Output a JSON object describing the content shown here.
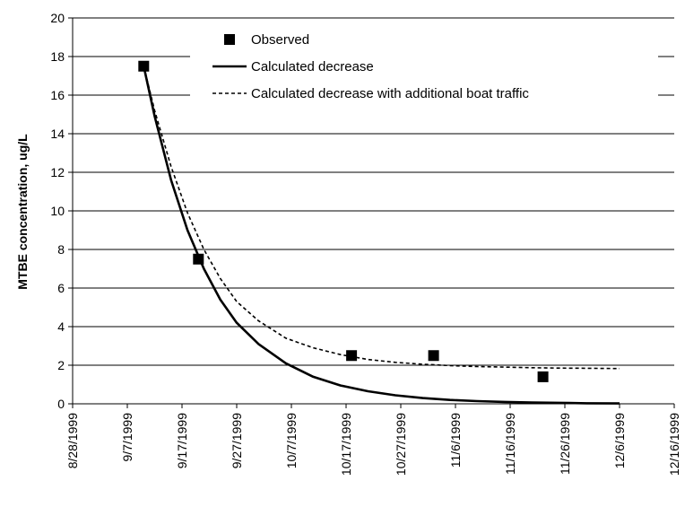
{
  "chart_data": {
    "type": "scatter",
    "title": "",
    "xlabel": "",
    "ylabel": "MTBE concentration, ug/L",
    "x_ticks": [
      "8/28/1999",
      "9/7/1999",
      "9/17/1999",
      "9/27/1999",
      "10/7/1999",
      "10/17/1999",
      "10/27/1999",
      "11/6/1999",
      "11/16/1999",
      "11/26/1999",
      "12/6/1999",
      "12/16/1999"
    ],
    "xlim": [
      "1999-08-28",
      "1999-12-16"
    ],
    "ylim": [
      0,
      20
    ],
    "y_ticks": [
      "0",
      "2",
      "4",
      "6",
      "8",
      "10",
      "12",
      "14",
      "16",
      "18",
      "20"
    ],
    "grid": "horizontal",
    "legend": "top-right",
    "series": [
      {
        "name": "Observed",
        "kind": "markers",
        "marker": "square",
        "color": "#000000",
        "points": [
          {
            "x": "1999-09-10",
            "y": 17.5
          },
          {
            "x": "1999-09-20",
            "y": 7.5
          },
          {
            "x": "1999-10-18",
            "y": 2.5
          },
          {
            "x": "1999-11-02",
            "y": 2.5
          },
          {
            "x": "1999-11-22",
            "y": 1.4
          }
        ]
      },
      {
        "name": "Calculated decrease",
        "kind": "line",
        "dash": "solid",
        "color": "#000000",
        "points": [
          {
            "x": "1999-09-10",
            "y": 17.5
          },
          {
            "x": "1999-09-12",
            "y": 14.9
          },
          {
            "x": "1999-09-15",
            "y": 11.6
          },
          {
            "x": "1999-09-18",
            "y": 9.0
          },
          {
            "x": "1999-09-21",
            "y": 7.0
          },
          {
            "x": "1999-09-24",
            "y": 5.4
          },
          {
            "x": "1999-09-27",
            "y": 4.2
          },
          {
            "x": "1999-10-01",
            "y": 3.1
          },
          {
            "x": "1999-10-06",
            "y": 2.1
          },
          {
            "x": "1999-10-11",
            "y": 1.4
          },
          {
            "x": "1999-10-16",
            "y": 0.95
          },
          {
            "x": "1999-10-21",
            "y": 0.65
          },
          {
            "x": "1999-10-26",
            "y": 0.44
          },
          {
            "x": "1999-10-31",
            "y": 0.3
          },
          {
            "x": "1999-11-05",
            "y": 0.2
          },
          {
            "x": "1999-11-10",
            "y": 0.14
          },
          {
            "x": "1999-11-15",
            "y": 0.1
          },
          {
            "x": "1999-11-20",
            "y": 0.07
          },
          {
            "x": "1999-11-25",
            "y": 0.05
          },
          {
            "x": "1999-11-30",
            "y": 0.03
          },
          {
            "x": "1999-12-06",
            "y": 0.02
          }
        ]
      },
      {
        "name": "Calculated decrease with additional boat traffic",
        "kind": "line",
        "dash": "dotted",
        "color": "#000000",
        "points": [
          {
            "x": "1999-09-10",
            "y": 17.5
          },
          {
            "x": "1999-09-12",
            "y": 15.2
          },
          {
            "x": "1999-09-15",
            "y": 12.3
          },
          {
            "x": "1999-09-18",
            "y": 9.9
          },
          {
            "x": "1999-09-21",
            "y": 8.0
          },
          {
            "x": "1999-09-24",
            "y": 6.5
          },
          {
            "x": "1999-09-27",
            "y": 5.3
          },
          {
            "x": "1999-10-01",
            "y": 4.3
          },
          {
            "x": "1999-10-06",
            "y": 3.4
          },
          {
            "x": "1999-10-11",
            "y": 2.9
          },
          {
            "x": "1999-10-16",
            "y": 2.55
          },
          {
            "x": "1999-10-21",
            "y": 2.3
          },
          {
            "x": "1999-10-26",
            "y": 2.15
          },
          {
            "x": "1999-10-31",
            "y": 2.05
          },
          {
            "x": "1999-11-05",
            "y": 1.98
          },
          {
            "x": "1999-11-10",
            "y": 1.93
          },
          {
            "x": "1999-11-15",
            "y": 1.9
          },
          {
            "x": "1999-11-20",
            "y": 1.87
          },
          {
            "x": "1999-11-25",
            "y": 1.85
          },
          {
            "x": "1999-11-30",
            "y": 1.84
          },
          {
            "x": "1999-12-06",
            "y": 1.83
          }
        ]
      }
    ]
  }
}
